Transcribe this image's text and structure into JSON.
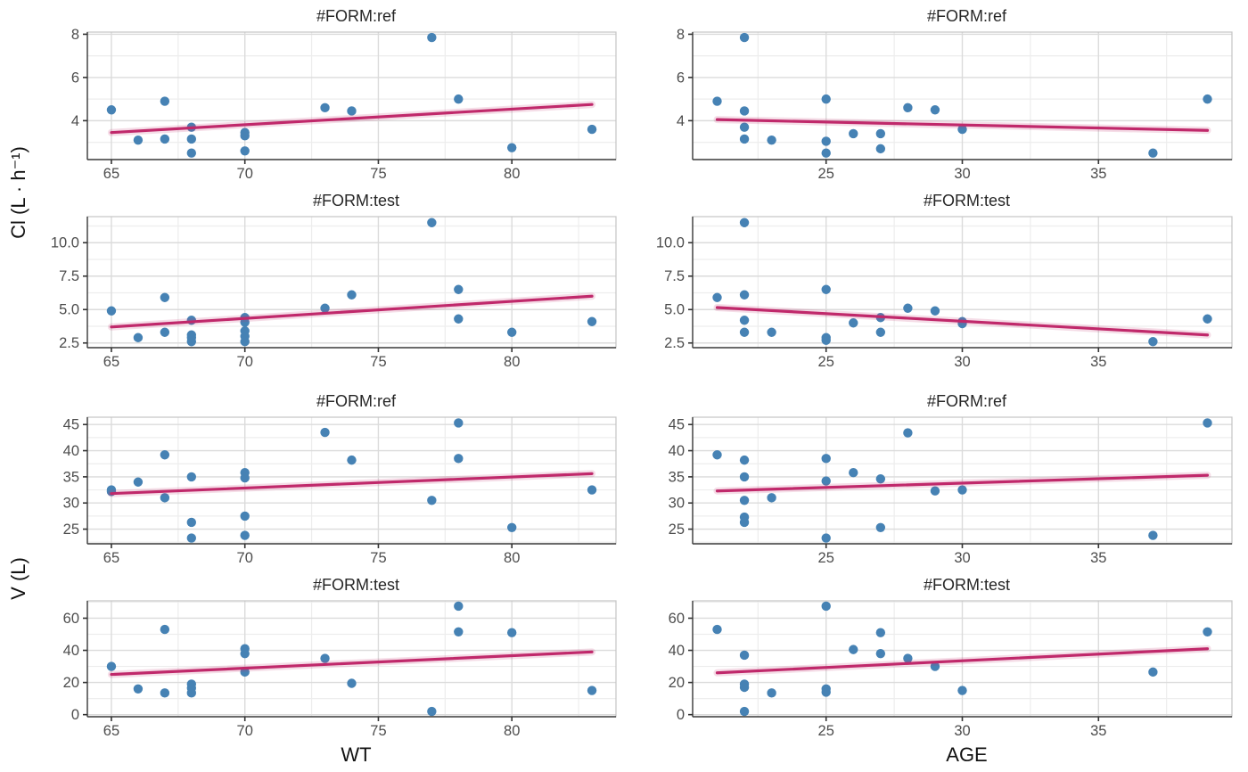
{
  "figure": {
    "y_axis_labels": [
      "Cl (L · h⁻¹)",
      "V (L)"
    ],
    "x_axis_titles": [
      "WT",
      "AGE"
    ]
  },
  "colors": {
    "point": "#4682B4",
    "trend": "#C0296B",
    "grid_major": "#DBDBDB",
    "grid_minor": "#EDEDED",
    "panel_border": "#C4C4C4",
    "axis_line": "#3C3C3C",
    "tick": "#333333",
    "tick_label": "#4D4D4D",
    "panel_bg": "#FFFFFF"
  },
  "chart_data": [
    {
      "type": "scatter",
      "title": "#FORM:ref",
      "xlabel": "WT",
      "ylabel": "Cl (L · h⁻¹)",
      "xlim": [
        64.1,
        83.9
      ],
      "ylim": [
        2.2,
        8.1
      ],
      "xticks": [
        65,
        70,
        75,
        80
      ],
      "xtick_labels": [
        "65",
        "70",
        "75",
        "80"
      ],
      "xminor": [
        67.5,
        72.5,
        77.5,
        82.5
      ],
      "yticks": [
        4,
        6,
        8
      ],
      "ytick_labels": [
        "4",
        "6",
        "8"
      ],
      "yminor": [
        3,
        5,
        7
      ],
      "points": [
        [
          65,
          4.5
        ],
        [
          66,
          3.1
        ],
        [
          67,
          4.9
        ],
        [
          67,
          3.15
        ],
        [
          68,
          3.7
        ],
        [
          68,
          3.15
        ],
        [
          68,
          2.5
        ],
        [
          70,
          3.45
        ],
        [
          70,
          3.3
        ],
        [
          70,
          2.6
        ],
        [
          73,
          4.6
        ],
        [
          74,
          4.45
        ],
        [
          77,
          7.85
        ],
        [
          78,
          5.0
        ],
        [
          80,
          2.75
        ],
        [
          83,
          3.6
        ]
      ],
      "trend": {
        "x": [
          65,
          83
        ],
        "y": [
          3.45,
          4.75
        ]
      }
    },
    {
      "type": "scatter",
      "title": "#FORM:ref",
      "xlabel": "AGE",
      "ylabel": "Cl (L · h⁻¹)",
      "xlim": [
        20.1,
        39.9
      ],
      "ylim": [
        2.2,
        8.1
      ],
      "xticks": [
        25,
        30,
        35
      ],
      "xtick_labels": [
        "25",
        "30",
        "35"
      ],
      "xminor": [
        22.5,
        27.5,
        32.5,
        37.5
      ],
      "yticks": [
        4,
        6,
        8
      ],
      "ytick_labels": [
        "4",
        "6",
        "8"
      ],
      "yminor": [
        3,
        5,
        7
      ],
      "points": [
        [
          21,
          4.9
        ],
        [
          22,
          7.85
        ],
        [
          22,
          4.45
        ],
        [
          22,
          3.7
        ],
        [
          22,
          3.15
        ],
        [
          23,
          3.1
        ],
        [
          25,
          5.0
        ],
        [
          25,
          3.05
        ],
        [
          25,
          2.5
        ],
        [
          26,
          3.4
        ],
        [
          27,
          3.4
        ],
        [
          27,
          2.7
        ],
        [
          28,
          4.6
        ],
        [
          29,
          4.5
        ],
        [
          30,
          3.6
        ],
        [
          37,
          2.5
        ],
        [
          39,
          5.0
        ]
      ],
      "trend": {
        "x": [
          21,
          39
        ],
        "y": [
          4.05,
          3.55
        ]
      }
    },
    {
      "type": "scatter",
      "title": "#FORM:test",
      "xlabel": "WT",
      "ylabel": "Cl (L · h⁻¹)",
      "xlim": [
        64.1,
        83.9
      ],
      "ylim": [
        2.15,
        11.95
      ],
      "xticks": [
        65,
        70,
        75,
        80
      ],
      "xtick_labels": [
        "65",
        "70",
        "75",
        "80"
      ],
      "xminor": [
        67.5,
        72.5,
        77.5,
        82.5
      ],
      "yticks": [
        2.5,
        5.0,
        7.5,
        10.0
      ],
      "ytick_labels": [
        "2.5",
        "5.0",
        "7.5",
        "10.0"
      ],
      "yminor": [
        3.75,
        6.25,
        8.75,
        11.25
      ],
      "points": [
        [
          65,
          4.9
        ],
        [
          66,
          2.9
        ],
        [
          67,
          5.9
        ],
        [
          67,
          3.3
        ],
        [
          68,
          4.2
        ],
        [
          68,
          3.1
        ],
        [
          68,
          2.9
        ],
        [
          68,
          2.6
        ],
        [
          70,
          4.4
        ],
        [
          70,
          4.05
        ],
        [
          70,
          3.4
        ],
        [
          70,
          3.0
        ],
        [
          70,
          2.6
        ],
        [
          73,
          5.1
        ],
        [
          74,
          6.1
        ],
        [
          77,
          11.5
        ],
        [
          78,
          6.5
        ],
        [
          78,
          4.3
        ],
        [
          80,
          3.3
        ],
        [
          83,
          4.1
        ]
      ],
      "trend": {
        "x": [
          65,
          83
        ],
        "y": [
          3.7,
          6.0
        ]
      }
    },
    {
      "type": "scatter",
      "title": "#FORM:test",
      "xlabel": "AGE",
      "ylabel": "Cl (L · h⁻¹)",
      "xlim": [
        20.1,
        39.9
      ],
      "ylim": [
        2.15,
        11.95
      ],
      "xticks": [
        25,
        30,
        35
      ],
      "xtick_labels": [
        "25",
        "30",
        "35"
      ],
      "xminor": [
        22.5,
        27.5,
        32.5,
        37.5
      ],
      "yticks": [
        2.5,
        5.0,
        7.5,
        10.0
      ],
      "ytick_labels": [
        "2.5",
        "5.0",
        "7.5",
        "10.0"
      ],
      "yminor": [
        3.75,
        6.25,
        8.75,
        11.25
      ],
      "points": [
        [
          21,
          5.9
        ],
        [
          22,
          11.5
        ],
        [
          22,
          6.1
        ],
        [
          22,
          4.2
        ],
        [
          22,
          3.3
        ],
        [
          23,
          3.3
        ],
        [
          25,
          6.5
        ],
        [
          25,
          2.9
        ],
        [
          25,
          2.7
        ],
        [
          26,
          4.0
        ],
        [
          27,
          4.4
        ],
        [
          27,
          3.3
        ],
        [
          28,
          5.1
        ],
        [
          29,
          4.9
        ],
        [
          30,
          4.1
        ],
        [
          30,
          3.95
        ],
        [
          37,
          2.6
        ],
        [
          39,
          4.3
        ]
      ],
      "trend": {
        "x": [
          21,
          39
        ],
        "y": [
          5.15,
          3.1
        ]
      }
    },
    {
      "type": "scatter",
      "title": "#FORM:ref",
      "xlabel": "WT",
      "ylabel": "V (L)",
      "xlim": [
        64.1,
        83.9
      ],
      "ylim": [
        22.2,
        46.4
      ],
      "xticks": [
        65,
        70,
        75,
        80
      ],
      "xtick_labels": [
        "65",
        "70",
        "75",
        "80"
      ],
      "xminor": [
        67.5,
        72.5,
        77.5,
        82.5
      ],
      "yticks": [
        25,
        30,
        35,
        40,
        45
      ],
      "ytick_labels": [
        "25",
        "30",
        "35",
        "40",
        "45"
      ],
      "yminor": [
        22.5,
        27.5,
        32.5,
        37.5,
        42.5
      ],
      "points": [
        [
          65,
          32.5
        ],
        [
          65,
          32.2
        ],
        [
          66,
          34.0
        ],
        [
          67,
          39.2
        ],
        [
          67,
          31.0
        ],
        [
          68,
          35.0
        ],
        [
          68,
          26.3
        ],
        [
          68,
          23.3
        ],
        [
          70,
          35.8
        ],
        [
          70,
          34.8
        ],
        [
          70,
          27.5
        ],
        [
          70,
          23.8
        ],
        [
          73,
          43.5
        ],
        [
          74,
          38.2
        ],
        [
          77,
          30.5
        ],
        [
          78,
          45.3
        ],
        [
          78,
          38.5
        ],
        [
          80,
          25.3
        ],
        [
          83,
          32.5
        ]
      ],
      "trend": {
        "x": [
          65,
          83
        ],
        "y": [
          31.8,
          35.6
        ]
      }
    },
    {
      "type": "scatter",
      "title": "#FORM:ref",
      "xlabel": "AGE",
      "ylabel": "V (L)",
      "xlim": [
        20.1,
        39.9
      ],
      "ylim": [
        22.2,
        46.4
      ],
      "xticks": [
        25,
        30,
        35
      ],
      "xtick_labels": [
        "25",
        "30",
        "35"
      ],
      "xminor": [
        22.5,
        27.5,
        32.5,
        37.5
      ],
      "yticks": [
        25,
        30,
        35,
        40,
        45
      ],
      "ytick_labels": [
        "25",
        "30",
        "35",
        "40",
        "45"
      ],
      "yminor": [
        22.5,
        27.5,
        32.5,
        37.5,
        42.5
      ],
      "points": [
        [
          21,
          39.2
        ],
        [
          22,
          38.2
        ],
        [
          22,
          35.0
        ],
        [
          22,
          30.5
        ],
        [
          22,
          27.3
        ],
        [
          22,
          26.3
        ],
        [
          23,
          31.0
        ],
        [
          25,
          38.5
        ],
        [
          25,
          34.2
        ],
        [
          25,
          23.3
        ],
        [
          26,
          35.8
        ],
        [
          27,
          34.6
        ],
        [
          27,
          25.3
        ],
        [
          28,
          43.4
        ],
        [
          29,
          32.3
        ],
        [
          30,
          32.5
        ],
        [
          37,
          23.8
        ],
        [
          39,
          45.3
        ]
      ],
      "trend": {
        "x": [
          21,
          39
        ],
        "y": [
          32.3,
          35.3
        ]
      }
    },
    {
      "type": "scatter",
      "title": "#FORM:test",
      "xlabel": "WT",
      "ylabel": "V (L)",
      "xlim": [
        64.1,
        83.9
      ],
      "ylim": [
        -1.3,
        70.8
      ],
      "xticks": [
        65,
        70,
        75,
        80
      ],
      "xtick_labels": [
        "65",
        "70",
        "75",
        "80"
      ],
      "xminor": [
        67.5,
        72.5,
        77.5,
        82.5
      ],
      "yticks": [
        0,
        20,
        40,
        60
      ],
      "ytick_labels": [
        "0",
        "20",
        "40",
        "60"
      ],
      "yminor": [
        10,
        30,
        50,
        70
      ],
      "points": [
        [
          65,
          30
        ],
        [
          66,
          16
        ],
        [
          67,
          53
        ],
        [
          67,
          13.5
        ],
        [
          68,
          19
        ],
        [
          68,
          16.5
        ],
        [
          68,
          13.5
        ],
        [
          70,
          41
        ],
        [
          70,
          38
        ],
        [
          70,
          26.5
        ],
        [
          73,
          35
        ],
        [
          74,
          19.5
        ],
        [
          77,
          2
        ],
        [
          78,
          67.5
        ],
        [
          78,
          51.5
        ],
        [
          80,
          51
        ],
        [
          83,
          15
        ]
      ],
      "trend": {
        "x": [
          65,
          83
        ],
        "y": [
          25,
          39
        ]
      }
    },
    {
      "type": "scatter",
      "title": "#FORM:test",
      "xlabel": "AGE",
      "ylabel": "V (L)",
      "xlim": [
        20.1,
        39.9
      ],
      "ylim": [
        -1.3,
        70.8
      ],
      "xticks": [
        25,
        30,
        35
      ],
      "xtick_labels": [
        "25",
        "30",
        "35"
      ],
      "xminor": [
        22.5,
        27.5,
        32.5,
        37.5
      ],
      "yticks": [
        0,
        20,
        40,
        60
      ],
      "ytick_labels": [
        "0",
        "20",
        "40",
        "60"
      ],
      "yminor": [
        10,
        30,
        50,
        70
      ],
      "points": [
        [
          21,
          53
        ],
        [
          22,
          37
        ],
        [
          22,
          19
        ],
        [
          22,
          17
        ],
        [
          22,
          2
        ],
        [
          23,
          13.5
        ],
        [
          25,
          67.5
        ],
        [
          25,
          16
        ],
        [
          25,
          14
        ],
        [
          26,
          40.5
        ],
        [
          27,
          51
        ],
        [
          27,
          38
        ],
        [
          28,
          35
        ],
        [
          29,
          30
        ],
        [
          30,
          15
        ],
        [
          37,
          26.5
        ],
        [
          39,
          51.5
        ]
      ],
      "trend": {
        "x": [
          21,
          39
        ],
        "y": [
          26,
          41
        ]
      }
    }
  ]
}
